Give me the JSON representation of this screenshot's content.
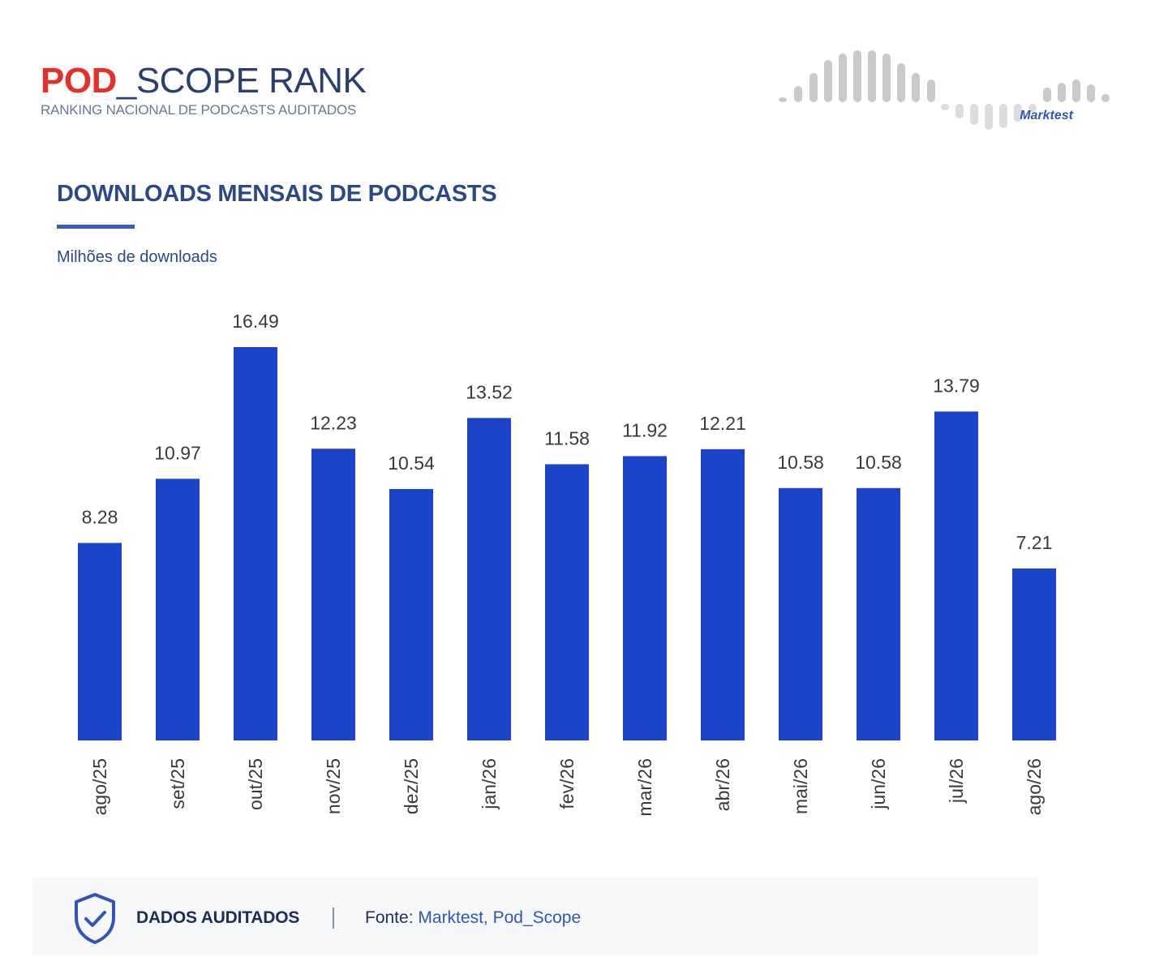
{
  "header": {
    "logo_pod": "POD",
    "logo_scope": "_SCOPE RANK",
    "logo_subtitle": "RANKING NACIONAL DE PODCASTS AUDITADOS",
    "partner": "Marktest"
  },
  "chart_data": {
    "type": "bar",
    "title": "DOWNLOADS MENSAIS DE PODCASTS",
    "subtitle": "Milhões de downloads",
    "categories": [
      "ago/25",
      "set/25",
      "out/25",
      "nov/25",
      "dez/25",
      "jan/26",
      "fev/26",
      "mar/26",
      "abr/26",
      "mai/26",
      "jun/26",
      "jul/26",
      "ago/26"
    ],
    "values": [
      8.28,
      10.97,
      16.49,
      12.23,
      10.54,
      13.52,
      11.58,
      11.92,
      12.21,
      10.58,
      10.58,
      13.79,
      7.21
    ],
    "value_labels": [
      "8.28",
      "10.97",
      "16.49",
      "12.23",
      "10.54",
      "13.52",
      "11.58",
      "11.92",
      "12.21",
      "10.58",
      "10.58",
      "13.79",
      "7.21"
    ],
    "ylim": [
      0,
      16.49
    ],
    "color": "#1a43c8",
    "grid": false,
    "legend": "none"
  },
  "footer": {
    "audit_label": "DADOS AUDITADOS",
    "source_label": "Fonte:",
    "source_value": "Marktest, Pod_Scope"
  },
  "icons": {
    "shield": "shield-check-icon",
    "logo_mic": "microphone-icon",
    "soundwave": "soundwave-icon"
  }
}
